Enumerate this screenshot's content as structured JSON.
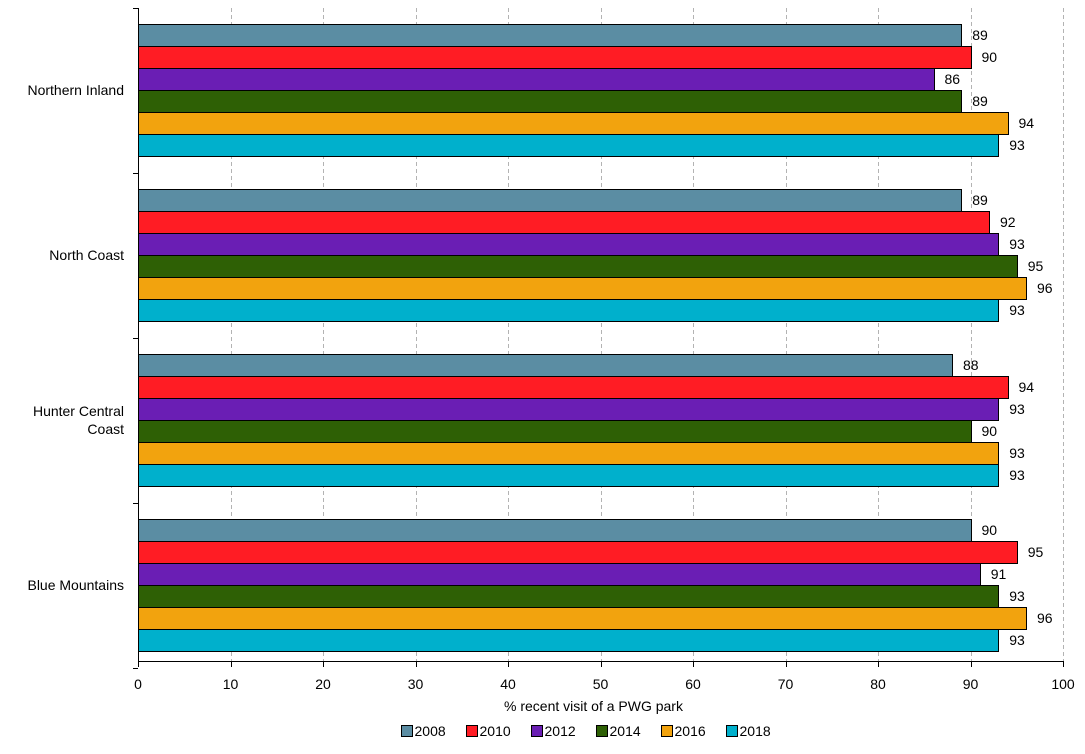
{
  "chart_data": {
    "type": "bar",
    "orientation": "horizontal",
    "title": "",
    "xlabel": "% recent visit of a PWG park",
    "ylabel": "",
    "xlim": [
      0,
      100
    ],
    "x_ticks": [
      0,
      10,
      20,
      30,
      40,
      50,
      60,
      70,
      80,
      90,
      100
    ],
    "grid": true,
    "legend_position": "bottom",
    "categories": [
      [
        "Northern Inland"
      ],
      [
        "North Coast"
      ],
      [
        "Hunter Central",
        "Coast"
      ],
      [
        "Blue Mountains"
      ]
    ],
    "series": [
      {
        "name": "2008",
        "color": "#5b8da3",
        "values": [
          89,
          89,
          88,
          90
        ]
      },
      {
        "name": "2010",
        "color": "#ff1c24",
        "values": [
          90,
          92,
          94,
          95
        ]
      },
      {
        "name": "2012",
        "color": "#6a1eb4",
        "values": [
          86,
          93,
          93,
          91
        ]
      },
      {
        "name": "2014",
        "color": "#2e6005",
        "values": [
          89,
          95,
          90,
          93
        ]
      },
      {
        "name": "2016",
        "color": "#f2a30e",
        "values": [
          94,
          96,
          93,
          96
        ]
      },
      {
        "name": "2018",
        "color": "#00b0cc",
        "values": [
          93,
          93,
          93,
          93
        ]
      }
    ]
  }
}
